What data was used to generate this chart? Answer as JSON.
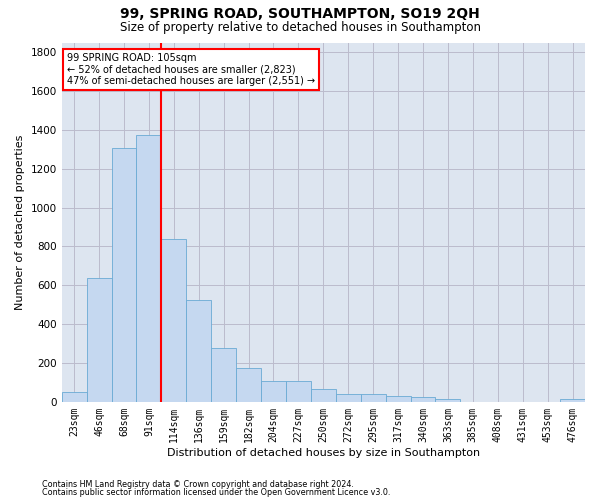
{
  "title": "99, SPRING ROAD, SOUTHAMPTON, SO19 2QH",
  "subtitle": "Size of property relative to detached houses in Southampton",
  "xlabel": "Distribution of detached houses by size in Southampton",
  "ylabel": "Number of detached properties",
  "footnote1": "Contains HM Land Registry data © Crown copyright and database right 2024.",
  "footnote2": "Contains public sector information licensed under the Open Government Licence v3.0.",
  "bar_labels": [
    "23sqm",
    "46sqm",
    "68sqm",
    "91sqm",
    "114sqm",
    "136sqm",
    "159sqm",
    "182sqm",
    "204sqm",
    "227sqm",
    "250sqm",
    "272sqm",
    "295sqm",
    "317sqm",
    "340sqm",
    "363sqm",
    "385sqm",
    "408sqm",
    "431sqm",
    "453sqm",
    "476sqm"
  ],
  "bar_values": [
    50,
    635,
    1305,
    1375,
    840,
    525,
    275,
    175,
    105,
    105,
    65,
    40,
    40,
    30,
    25,
    15,
    0,
    0,
    0,
    0,
    15
  ],
  "bar_color": "#c5d8f0",
  "bar_edge_color": "#6aaad4",
  "vline_color": "red",
  "vline_bar_index": 3,
  "annotation_text": "99 SPRING ROAD: 105sqm\n← 52% of detached houses are smaller (2,823)\n47% of semi-detached houses are larger (2,551) →",
  "annotation_box_color": "white",
  "annotation_box_edge_color": "red",
  "ylim": [
    0,
    1850
  ],
  "yticks": [
    0,
    200,
    400,
    600,
    800,
    1000,
    1200,
    1400,
    1600,
    1800
  ],
  "grid_color": "#bbbbcc",
  "bg_color": "#dde5f0",
  "title_fontsize": 10,
  "subtitle_fontsize": 8.5,
  "axis_label_fontsize": 8,
  "tick_fontsize": 7,
  "footnote_fontsize": 5.8
}
